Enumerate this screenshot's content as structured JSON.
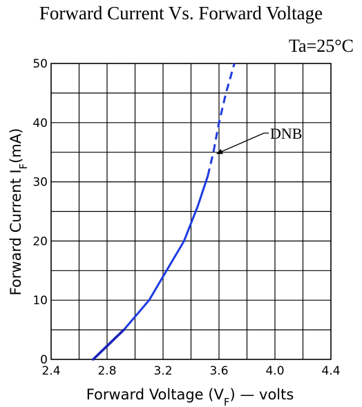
{
  "chart_data": {
    "type": "line",
    "title": "Forward Current Vs. Forward Voltage",
    "condition": "Ta=25°C",
    "xlabel_parts": {
      "prefix": "Forward Voltage (V",
      "sub": "F",
      "suffix": ") — volts"
    },
    "ylabel_parts": {
      "prefix": "Forward Current I",
      "sub": "F",
      "suffix": "(mA)"
    },
    "xlim": [
      2.4,
      4.4
    ],
    "ylim": [
      0,
      50
    ],
    "x_ticks": [
      "2.4",
      "2.8",
      "3.2",
      "3.6",
      "4.0",
      "4.4"
    ],
    "y_ticks": [
      "0",
      "10",
      "20",
      "30",
      "40",
      "50"
    ],
    "grid": true,
    "series": [
      {
        "solid": [
          [
            2.7,
            0
          ],
          [
            2.92,
            5
          ],
          [
            3.1,
            10
          ],
          [
            3.2,
            14
          ],
          [
            3.35,
            20
          ],
          [
            3.45,
            26
          ],
          [
            3.52,
            31
          ]
        ],
        "dashed": [
          [
            3.52,
            31
          ],
          [
            3.56,
            35
          ],
          [
            3.6,
            40
          ],
          [
            3.65,
            45
          ],
          [
            3.71,
            50
          ]
        ],
        "color": "#1f3ce0",
        "start_highlight_color": "#1a22b8"
      }
    ],
    "annotation": {
      "text": "DNB",
      "point_x": 3.58,
      "point_y": 34.7
    }
  }
}
